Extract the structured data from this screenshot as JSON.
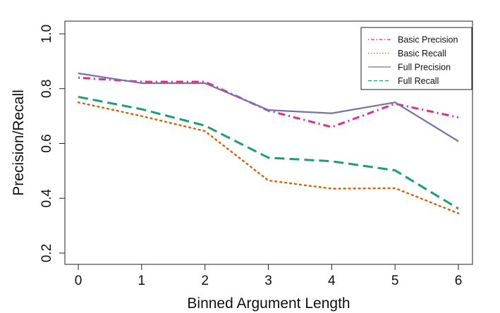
{
  "chart_data": {
    "type": "line",
    "title": "",
    "xlabel": "Binned Argument Length",
    "ylabel": "Precision/Recall",
    "x": [
      0,
      1,
      2,
      3,
      4,
      5,
      6
    ],
    "xlim": [
      0,
      6
    ],
    "ylim": [
      0.2,
      1.0
    ],
    "xticks": [
      "0",
      "1",
      "2",
      "3",
      "4",
      "5",
      "6"
    ],
    "yticks": [
      "0.2",
      "0.4",
      "0.6",
      "0.8",
      "1.0"
    ],
    "grid": false,
    "legend_position": "top-right",
    "series": [
      {
        "name": "Basic Precision",
        "values": [
          0.84,
          0.825,
          0.825,
          0.72,
          0.66,
          0.745,
          0.695
        ],
        "color": "#e7298a",
        "style": "dashdot"
      },
      {
        "name": "Basic Recall",
        "values": [
          0.75,
          0.7,
          0.645,
          0.465,
          0.435,
          0.437,
          0.345
        ],
        "color": "#d95f02",
        "style": "dotted"
      },
      {
        "name": "Full Precision",
        "values": [
          0.856,
          0.82,
          0.82,
          0.722,
          0.71,
          0.75,
          0.608
        ],
        "color": "#7570b3",
        "style": "solid"
      },
      {
        "name": "Full Recall",
        "values": [
          0.77,
          0.725,
          0.665,
          0.548,
          0.535,
          0.502,
          0.362
        ],
        "color": "#1b9e77",
        "style": "dashed"
      }
    ]
  }
}
